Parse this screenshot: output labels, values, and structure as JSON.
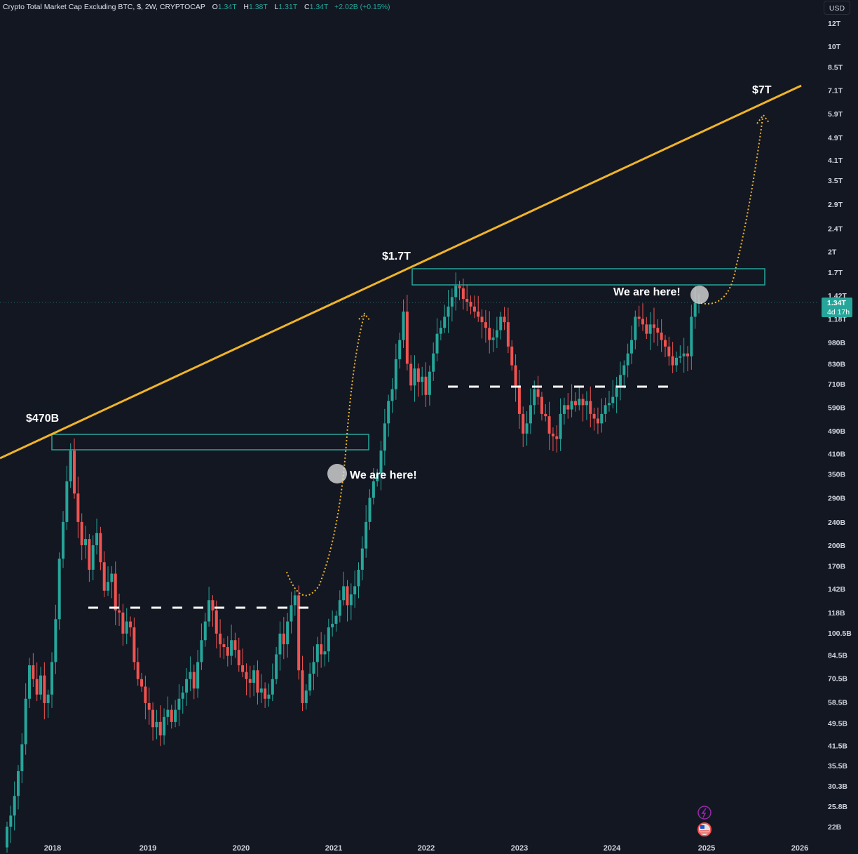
{
  "header": {
    "title": "Crypto Total Market Cap Excluding BTC, $, 2W, CRYPTOCAP",
    "ohlc": [
      {
        "key": "O",
        "value": "1.34T"
      },
      {
        "key": "H",
        "value": "1.38T"
      },
      {
        "key": "L",
        "value": "1.31T"
      },
      {
        "key": "C",
        "value": "1.34T"
      }
    ],
    "change": "+2.02B (+0.15%)",
    "currency_button": "USD"
  },
  "price_label": {
    "value": "1.34T",
    "countdown": "4d 17h",
    "color": "#26a69a"
  },
  "colors": {
    "up": "#26a69a",
    "down": "#ef5350",
    "trendline": "#f0b429",
    "zone": "#26a69a",
    "background": "#131722"
  },
  "annotations": {
    "label_470b": "$470B",
    "label_1_7t": "$1.7T",
    "label_7t": "$7T",
    "we_are_here_1": "We are here!",
    "we_are_here_2": "We are here!"
  },
  "icons": [
    "lightning-event-icon",
    "us-flag-event-icon"
  ],
  "chart_data": {
    "type": "candlestick",
    "title": "Crypto Total Market Cap Excluding BTC, $, 2W, CRYPTOCAP",
    "scale": "log",
    "ylabel": "USD",
    "y_ticks": [
      "12T",
      "10T",
      "8.5T",
      "7.1T",
      "5.9T",
      "4.9T",
      "4.1T",
      "3.5T",
      "2.9T",
      "2.4T",
      "2T",
      "1.7T",
      "1.42T",
      "1.18T",
      "980B",
      "830B",
      "710B",
      "590B",
      "490B",
      "410B",
      "350B",
      "290B",
      "240B",
      "200B",
      "170B",
      "142B",
      "118B",
      "100.5B",
      "84.5B",
      "70.5B",
      "58.5B",
      "49.5B",
      "41.5B",
      "35.5B",
      "30.3B",
      "25.8B",
      "22B"
    ],
    "x_ticks": [
      "2018",
      "2019",
      "2020",
      "2021",
      "2022",
      "2023",
      "2024",
      "2025",
      "2026"
    ],
    "last_price": "1.34T",
    "closes_billions": [
      22,
      24,
      28,
      34,
      42,
      60,
      78,
      70,
      62,
      72,
      58,
      62,
      80,
      112,
      180,
      240,
      330,
      420,
      300,
      240,
      200,
      210,
      165,
      200,
      220,
      175,
      140,
      150,
      160,
      120,
      118,
      100,
      110,
      105,
      80,
      70,
      66,
      58,
      55,
      48,
      50,
      45,
      52,
      55,
      50,
      55,
      60,
      63,
      70,
      74,
      65,
      80,
      95,
      110,
      130,
      120,
      100,
      92,
      90,
      84,
      95,
      88,
      78,
      74,
      70,
      68,
      75,
      63,
      65,
      60,
      62,
      70,
      85,
      100,
      92,
      110,
      125,
      135,
      75,
      58,
      64,
      73,
      80,
      92,
      85,
      87,
      105,
      108,
      115,
      130,
      145,
      125,
      136,
      145,
      165,
      195,
      240,
      290,
      330,
      350,
      420,
      520,
      620,
      680,
      860,
      1000,
      1250,
      830,
      700,
      800,
      720,
      750,
      650,
      780,
      900,
      1050,
      1100,
      1200,
      1300,
      1400,
      1530,
      1500,
      1380,
      1350,
      1300,
      1250,
      1200,
      1150,
      1100,
      1000,
      1020,
      1080,
      1200,
      1150,
      950,
      820,
      700,
      560,
      480,
      520,
      600,
      680,
      640,
      560,
      550,
      480,
      470,
      460,
      560,
      600,
      580,
      620,
      600,
      630,
      600,
      620,
      560,
      540,
      520,
      560,
      600,
      610,
      640,
      700,
      760,
      820,
      900,
      1000,
      1200,
      1180,
      1130,
      1050,
      1130,
      1100,
      1060,
      1000,
      950,
      880,
      820,
      870,
      880,
      900,
      880,
      1200,
      1340,
      1340
    ],
    "annotations": [
      {
        "text": "$470B",
        "type": "label"
      },
      {
        "text": "$1.7T",
        "type": "label"
      },
      {
        "text": "$7T",
        "type": "label",
        "note": "trendline target"
      },
      {
        "text": "We are here!",
        "type": "marker",
        "value": "~360B"
      },
      {
        "text": "We are here!",
        "type": "marker",
        "value": "~1.34T"
      }
    ],
    "horizontal_levels": [
      {
        "type": "dashed",
        "value": "~120B"
      },
      {
        "type": "dashed",
        "value": "~690B"
      }
    ],
    "zones": [
      {
        "from": "~415B",
        "to": "~470B"
      },
      {
        "from": "~1.55T",
        "to": "~1.75T"
      }
    ]
  }
}
